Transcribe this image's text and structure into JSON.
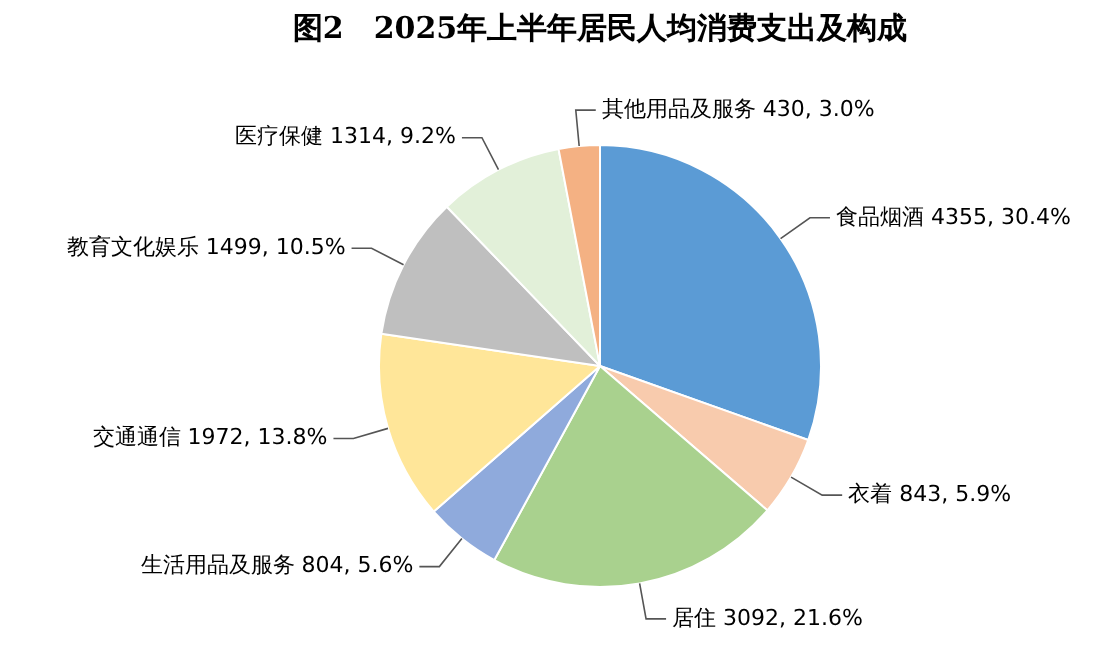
{
  "chart_data": {
    "type": "pie",
    "title": "图2　2025年上半年居民人均消费支出及构成",
    "categories": [
      "食品烟酒",
      "衣着",
      "居住",
      "生活用品及服务",
      "交通通信",
      "教育文化娱乐",
      "医疗保健",
      "其他用品及服务"
    ],
    "values": [
      4355,
      843,
      3092,
      804,
      1972,
      1499,
      1314,
      430
    ],
    "value_labels": [
      "4355, 30.4%",
      "843, 5.9%",
      "3092, 21.6%",
      "804, 5.6%",
      "1972, 13.8%",
      "1499, 10.5%",
      "1314, 9.2%",
      "430, 3.0%"
    ],
    "colors": [
      "#5b9bd5",
      "#f8cbad",
      "#a9d18e",
      "#8faadc",
      "#ffe699",
      "#bfbfbf",
      "#e2f0d9",
      "#f4b183"
    ],
    "legend": false
  }
}
